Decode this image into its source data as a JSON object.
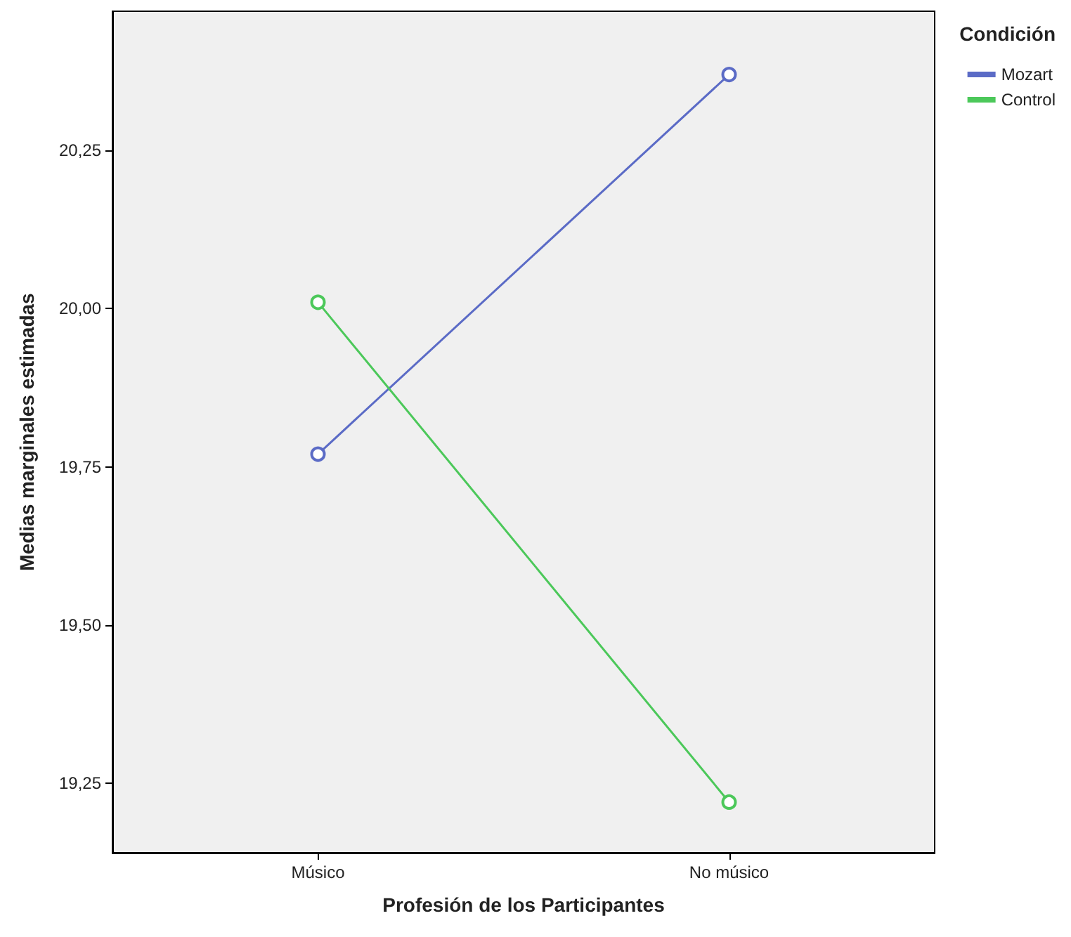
{
  "chart_data": {
    "type": "line",
    "xlabel": "Profesión de los Participantes",
    "ylabel": "Medias marginales estimadas",
    "legend_title": "Condición",
    "categories": [
      "Músico",
      "No músico"
    ],
    "series": [
      {
        "name": "Mozart",
        "color": "#5b6bc6",
        "values": [
          19.77,
          20.37
        ]
      },
      {
        "name": "Control",
        "color": "#4cc85a",
        "values": [
          20.01,
          19.22
        ]
      }
    ],
    "ylim": [
      19.14,
      20.47
    ],
    "yticks": [
      {
        "value": 19.25,
        "label": "19,25"
      },
      {
        "value": 19.5,
        "label": "19,50"
      },
      {
        "value": 19.75,
        "label": "19,75"
      },
      {
        "value": 20,
        "label": "20,00"
      },
      {
        "value": 20.25,
        "label": "20,25"
      }
    ],
    "grid": false,
    "legend": "top right",
    "marker": "circle",
    "line_style": "solid"
  }
}
